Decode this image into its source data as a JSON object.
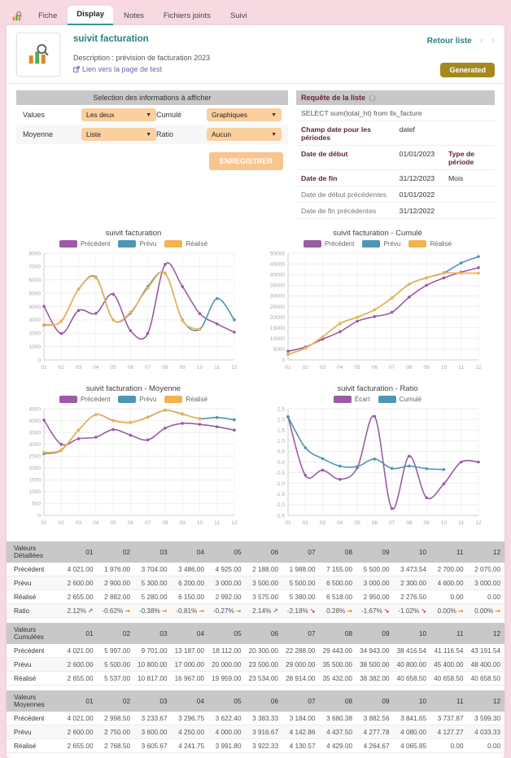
{
  "tabs": [
    {
      "label": "Fiche"
    },
    {
      "label": "Display",
      "active": true
    },
    {
      "label": "Notes"
    },
    {
      "label": "Fichiers joints"
    },
    {
      "label": "Suivi"
    }
  ],
  "header": {
    "title": "suivit facturation",
    "description": "Description : prévision de facturation 2023",
    "test_page_link": "Lien vers la page de test",
    "back_to_list": "Retour liste",
    "prev_arrow": "‹",
    "next_arrow": "›",
    "status_badge": "Generated"
  },
  "selection_panel": {
    "title": "Selection des informations à afficher",
    "fields": [
      {
        "label": "Values",
        "value": "Les deux"
      },
      {
        "label": "Cumulé",
        "value": "Graphiques"
      },
      {
        "label": "Moyenne",
        "value": "Liste"
      },
      {
        "label": "Ratio",
        "value": "Aucun"
      }
    ],
    "save_label": "ENREGISTRER"
  },
  "query_panel": {
    "title": "Requête de la liste",
    "sql": "SELECT sum(total_ht) from llx_facture",
    "rows": [
      {
        "label": "Champ date pour les périodes",
        "value": "datef",
        "extra": "",
        "bold": true
      },
      {
        "label": "Date de début",
        "value": "01/01/2023",
        "extra": "Type de période",
        "bold": true
      },
      {
        "label": "Date de fin",
        "value": "31/12/2023",
        "extra": "Mois",
        "bold": true
      },
      {
        "label": "Date de début précédentes",
        "value": "01/01/2022",
        "extra": "",
        "bold": false
      },
      {
        "label": "Date de fin précédentes",
        "value": "31/12/2022",
        "extra": "",
        "bold": false
      }
    ]
  },
  "months": [
    "01",
    "02",
    "03",
    "04",
    "05",
    "06",
    "07",
    "08",
    "09",
    "10",
    "11",
    "12"
  ],
  "colors": {
    "previous": "#9c5ba6",
    "planned": "#4d96b5",
    "actual": "#f2b34f",
    "accent_teal": "#2b8080"
  },
  "chart_data": [
    {
      "type": "line",
      "title": "suivit facturation",
      "x": [
        "01",
        "02",
        "03",
        "04",
        "05",
        "06",
        "07",
        "08",
        "09",
        "10",
        "11",
        "12"
      ],
      "ylim": [
        0,
        8000
      ],
      "ystep": 1000,
      "grid": true,
      "legend_position": "top",
      "series": [
        {
          "name": "Précédent",
          "color": "#9c5ba6",
          "values": [
            4021,
            1976,
            3704,
            3486,
            4925,
            2188,
            1988,
            7155,
            5500,
            3473.54,
            2700,
            2075
          ]
        },
        {
          "name": "Prévu",
          "color": "#4d96b5",
          "values": [
            2600,
            2900,
            5300,
            6200,
            3000,
            3500,
            5500,
            6500,
            3000,
            2300,
            4600,
            3000
          ]
        },
        {
          "name": "Réalisé",
          "color": "#f2b34f",
          "values": [
            2655,
            2882,
            5280,
            6150,
            2992,
            3575,
            5380,
            6518,
            2950,
            2276.5,
            null,
            null
          ]
        }
      ]
    },
    {
      "type": "line",
      "title": "suivit facturation - Cumulé",
      "x": [
        "01",
        "02",
        "03",
        "04",
        "05",
        "06",
        "07",
        "08",
        "09",
        "10",
        "11",
        "12"
      ],
      "ylim": [
        0,
        50000
      ],
      "ystep": 5000,
      "grid": true,
      "legend_position": "top",
      "series": [
        {
          "name": "Précédent",
          "color": "#9c5ba6",
          "values": [
            4021,
            5997,
            9701,
            13187,
            18112,
            20300,
            22288,
            29443,
            34943,
            38416.54,
            41116.54,
            43191.54
          ]
        },
        {
          "name": "Prévu",
          "color": "#4d96b5",
          "values": [
            2600,
            5500,
            10800,
            17000,
            20000,
            23500,
            29000,
            35500,
            38500,
            40800,
            45400,
            48400
          ]
        },
        {
          "name": "Réalisé",
          "color": "#f2b34f",
          "values": [
            2655,
            5537,
            10817,
            16967,
            19959,
            23534,
            28914,
            35432,
            38382,
            40658.5,
            40658.5,
            40658.5
          ]
        }
      ]
    },
    {
      "type": "line",
      "title": "suivit facturation - Moyenne",
      "x": [
        "01",
        "02",
        "03",
        "04",
        "05",
        "06",
        "07",
        "08",
        "09",
        "10",
        "11",
        "12"
      ],
      "ylim": [
        0,
        4500
      ],
      "ystep": 500,
      "grid": true,
      "legend_position": "top",
      "series": [
        {
          "name": "Précédent",
          "color": "#9c5ba6",
          "values": [
            4021,
            2998.5,
            3233.67,
            3296.75,
            3622.4,
            3383.33,
            3184,
            3680.38,
            3882.56,
            3841.65,
            3737.87,
            3599.3
          ]
        },
        {
          "name": "Prévu",
          "color": "#4d96b5",
          "values": [
            2600,
            2750,
            3600,
            4250,
            4000,
            3916.67,
            4142.86,
            4437.5,
            4277.78,
            4080,
            4127.27,
            4033.33
          ]
        },
        {
          "name": "Réalisé",
          "color": "#f2b34f",
          "values": [
            2655,
            2768.5,
            3605.67,
            4241.75,
            3991.8,
            3922.33,
            4130.57,
            4429,
            4264.67,
            4065.85,
            null,
            null
          ]
        }
      ]
    },
    {
      "type": "line",
      "title": "suivit facturation - Ratio",
      "x": [
        "01",
        "02",
        "03",
        "04",
        "05",
        "06",
        "07",
        "08",
        "09",
        "10",
        "11",
        "12"
      ],
      "ylim": [
        -2.5,
        2.5
      ],
      "ystep": 0.5,
      "grid": true,
      "legend_position": "top",
      "series": [
        {
          "name": "Écart",
          "color": "#9c5ba6",
          "values": [
            2.12,
            -0.62,
            -0.38,
            -0.81,
            -0.27,
            2.14,
            -2.18,
            0.28,
            -1.67,
            -1.02,
            0,
            0
          ]
        },
        {
          "name": "Cumulé",
          "color": "#4d96b5",
          "values": [
            2.12,
            0.67,
            0.16,
            -0.19,
            -0.21,
            0.14,
            -0.3,
            -0.19,
            -0.31,
            -0.35,
            null,
            null
          ]
        }
      ]
    }
  ],
  "tables": [
    {
      "title": "Valeurs Détaillées",
      "rows": [
        {
          "label": "Précédent",
          "type": "num",
          "values": [
            4021,
            1976,
            3704,
            3486,
            4925,
            2188,
            1988,
            7155,
            5500,
            3473.54,
            2700,
            2075
          ]
        },
        {
          "label": "Prévu",
          "type": "num",
          "values": [
            2600,
            2900,
            5300,
            6200,
            3000,
            3500,
            5500,
            6500,
            3000,
            2300,
            4600,
            3000
          ]
        },
        {
          "label": "Réalisé",
          "type": "num",
          "values": [
            2655,
            2882,
            5280,
            6150,
            2992,
            3575,
            5380,
            6518,
            2950,
            2276.5,
            0,
            0
          ]
        },
        {
          "label": "Ratio",
          "type": "ratio",
          "values": [
            "2.12%",
            "-0.62%",
            "-0.38%",
            "-0.81%",
            "-0.27%",
            "2.14%",
            "-2.18%",
            "0.28%",
            "-1.67%",
            "-1.02%",
            "0.00%",
            "0.00%"
          ],
          "trends": [
            "up",
            "right",
            "right",
            "right",
            "right",
            "up",
            "down",
            "right",
            "down",
            "down",
            "right",
            "right"
          ]
        }
      ]
    },
    {
      "title": "Valeurs Cumulées",
      "rows": [
        {
          "label": "Précédent",
          "type": "num",
          "values": [
            4021,
            5997,
            9701,
            13187,
            18112,
            20300,
            22288,
            29443,
            34943,
            38416.54,
            41116.54,
            43191.54
          ]
        },
        {
          "label": "Prévu",
          "type": "num",
          "values": [
            2600,
            5500,
            10800,
            17000,
            20000,
            23500,
            29000,
            35500,
            38500,
            40800,
            45400,
            48400
          ]
        },
        {
          "label": "Réalisé",
          "type": "num",
          "values": [
            2655,
            5537,
            10817,
            16967,
            19959,
            23534,
            28914,
            35432,
            38382,
            40658.5,
            40658.5,
            40658.5
          ]
        }
      ]
    },
    {
      "title": "Valeurs Moyennes",
      "rows": [
        {
          "label": "Précédent",
          "type": "num",
          "values": [
            4021,
            2998.5,
            3233.67,
            3296.75,
            3622.4,
            3383.33,
            3184,
            3680.38,
            3882.56,
            3841.65,
            3737.87,
            3599.3
          ]
        },
        {
          "label": "Prévu",
          "type": "num",
          "values": [
            2600,
            2750,
            3600,
            4250,
            4000,
            3916.67,
            4142.86,
            4437.5,
            4277.78,
            4080,
            4127.27,
            4033.33
          ]
        },
        {
          "label": "Réalisé",
          "type": "num",
          "values": [
            2655,
            2768.5,
            3605.67,
            4241.75,
            3991.8,
            3922.33,
            4130.57,
            4429,
            4264.67,
            4065.85,
            0,
            0
          ]
        }
      ]
    }
  ]
}
